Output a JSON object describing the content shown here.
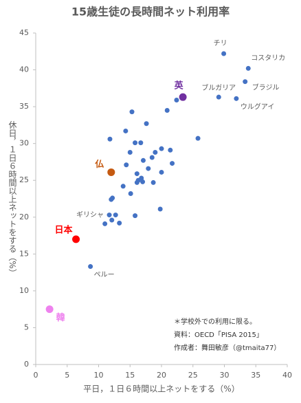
{
  "chart_data": {
    "type": "scatter",
    "title": "15歳生徒の長時間ネット利用率",
    "x_label": "平日，１日６時間以上ネットをする（%）",
    "y_label": "休日，１日６時間以上ネットをする（%）",
    "xlim": [
      0,
      40
    ],
    "xticks": [
      0,
      5,
      10,
      15,
      20,
      25,
      30,
      35,
      40
    ],
    "ylim": [
      0,
      45
    ],
    "yticks": [
      0,
      5,
      10,
      15,
      20,
      25,
      30,
      35,
      40,
      45
    ],
    "color": "#4472c4",
    "points": [
      {
        "x": 29.9,
        "y": 42.2,
        "label": "チリ"
      },
      {
        "x": 33.8,
        "y": 40.2,
        "label": "コスタリカ"
      },
      {
        "x": 33.3,
        "y": 38.4,
        "label": "ブラジル"
      },
      {
        "x": 29.1,
        "y": 36.3,
        "label": "ブルガリア"
      },
      {
        "x": 31.9,
        "y": 36.1,
        "label": "ウルグアイ"
      },
      {
        "x": 11.7,
        "y": 20.3,
        "label": "ギリシャ"
      },
      {
        "x": 8.7,
        "y": 13.3,
        "label": "ペルー"
      },
      {
        "x": 22.4,
        "y": 35.9
      },
      {
        "x": 20.9,
        "y": 34.5
      },
      {
        "x": 15.3,
        "y": 34.3
      },
      {
        "x": 17.6,
        "y": 32.7
      },
      {
        "x": 14.3,
        "y": 31.7
      },
      {
        "x": 11.8,
        "y": 30.6
      },
      {
        "x": 25.8,
        "y": 30.7
      },
      {
        "x": 15.8,
        "y": 30.1
      },
      {
        "x": 16.7,
        "y": 30.1
      },
      {
        "x": 20.0,
        "y": 29.3
      },
      {
        "x": 21.4,
        "y": 29.1
      },
      {
        "x": 15.0,
        "y": 28.8
      },
      {
        "x": 19.0,
        "y": 28.8
      },
      {
        "x": 18.5,
        "y": 28.1
      },
      {
        "x": 17.1,
        "y": 27.7
      },
      {
        "x": 14.4,
        "y": 27.1
      },
      {
        "x": 21.7,
        "y": 27.3
      },
      {
        "x": 17.9,
        "y": 26.6
      },
      {
        "x": 16.1,
        "y": 25.9
      },
      {
        "x": 20.0,
        "y": 26.1
      },
      {
        "x": 16.8,
        "y": 25.3
      },
      {
        "x": 16.3,
        "y": 25.0
      },
      {
        "x": 16.1,
        "y": 24.7
      },
      {
        "x": 17.0,
        "y": 24.8
      },
      {
        "x": 18.7,
        "y": 24.7
      },
      {
        "x": 13.9,
        "y": 24.2
      },
      {
        "x": 15.1,
        "y": 23.2
      },
      {
        "x": 12.2,
        "y": 22.6
      },
      {
        "x": 12.0,
        "y": 22.4
      },
      {
        "x": 19.8,
        "y": 21.1
      },
      {
        "x": 12.7,
        "y": 20.3
      },
      {
        "x": 15.8,
        "y": 20.2
      },
      {
        "x": 12.1,
        "y": 19.6
      },
      {
        "x": 11.0,
        "y": 19.1
      },
      {
        "x": 13.3,
        "y": 19.2
      }
    ],
    "highlights": [
      {
        "label": "英",
        "x": 23.4,
        "y": 36.3,
        "color": "#7030a0"
      },
      {
        "label": "仏",
        "x": 12.0,
        "y": 26.1,
        "color": "#c55a11"
      },
      {
        "label": "日本",
        "x": 6.4,
        "y": 17.0,
        "color": "#ff0000"
      },
      {
        "label": "韓",
        "x": 2.2,
        "y": 7.5,
        "color": "#ee82ee"
      }
    ],
    "notes": [
      "＊学校外での利用に限る。",
      "資料：OECD「PISA 2015」",
      "作成者：舞田敏彦（@tmaita77）"
    ]
  }
}
